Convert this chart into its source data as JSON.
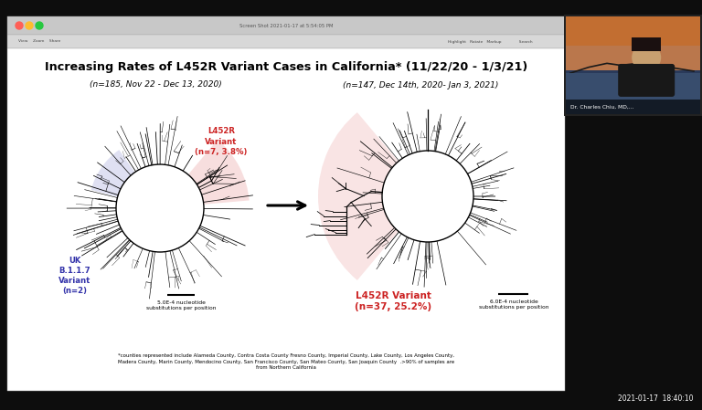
{
  "title": "Increasing Rates of L452R Variant Cases in California* (11/22/20 - 1/3/21)",
  "subtitle_left": "(n=185, Nov 22 - Dec 13, 2020)",
  "subtitle_right": "(n=147, Dec 14th, 2020- Jan 3, 2021)",
  "label_l452r_left": "L452R\nVariant\n(n=7, 3.8%)",
  "label_l452r_right": "L452R Variant\n(n=37, 25.2%)",
  "label_uk": "UK\nB.1.1.7\nVariant\n(n=2)",
  "scale_left": "5.0E-4 nucleotide\nsubstitutions per position",
  "scale_right": "6.0E-4 nucleotide\nsubstitutions per position",
  "footnote": "*counties represented include Alameda County, Contra Costa County Fresno County, Imperial County, Lake County, Los Angeles County,\nMadera County, Marin County, Mendocino County, San Francisco County, San Mateo County, San Joaquin County  .>90% of samples are\nfrom Northern California",
  "timestamp": "2021-01-17  18:40:10",
  "highlight_pink": "#f2c4c4",
  "highlight_blue": "#c5c8e8"
}
